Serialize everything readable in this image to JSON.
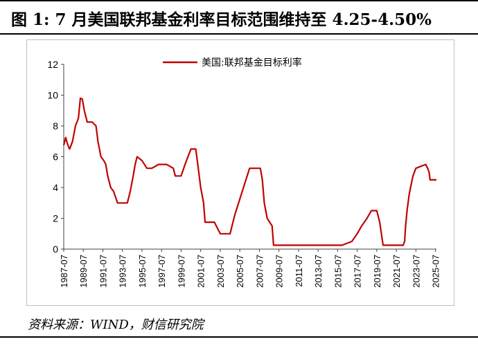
{
  "title": "图 1: 7 月美国联邦基金利率目标范围维持至 4.25-4.50%",
  "source": "资料来源：WIND，财信研究院",
  "colors": {
    "series": "#c00000",
    "axis": "#404040",
    "frame": "#bfbfbf"
  },
  "chart_data": {
    "type": "line",
    "title": "",
    "xlabel": "",
    "ylabel": "",
    "ylim": [
      0,
      12
    ],
    "y_ticks": [
      "0",
      "2",
      "4",
      "6",
      "8",
      "10",
      "12"
    ],
    "x_range": [
      1987.5,
      2025.6
    ],
    "x_ticks": [
      "1987-07",
      "1989-07",
      "1991-07",
      "1993-07",
      "1995-07",
      "1997-07",
      "1999-07",
      "2001-07",
      "2003-07",
      "2005-07",
      "2007-07",
      "2009-07",
      "2011-07",
      "2013-07",
      "2015-07",
      "2017-07",
      "2019-07",
      "2021-07",
      "2023-07",
      "2025-07"
    ],
    "grid": false,
    "legend_position": "top",
    "series": [
      {
        "name": "美国:联邦基金目标利率",
        "x": [
          1987.5,
          1987.7,
          1987.9,
          1988.1,
          1988.4,
          1988.7,
          1989.0,
          1989.2,
          1989.4,
          1989.6,
          1989.9,
          1990.4,
          1990.8,
          1991.0,
          1991.3,
          1991.6,
          1991.8,
          1992.0,
          1992.3,
          1992.6,
          1993.0,
          1994.0,
          1994.3,
          1994.6,
          1994.8,
          1995.0,
          1995.5,
          1996.0,
          1996.5,
          1997.2,
          1998.0,
          1998.7,
          1998.9,
          1999.5,
          1999.9,
          2000.2,
          2000.5,
          2001.0,
          2001.2,
          2001.5,
          2001.8,
          2001.95,
          2002.9,
          2003.5,
          2004.5,
          2005.0,
          2005.5,
          2006.0,
          2006.5,
          2007.6,
          2007.8,
          2008.0,
          2008.3,
          2008.8,
          2008.95,
          2015.95,
          2016.95,
          2017.5,
          2017.95,
          2018.5,
          2018.95,
          2019.5,
          2019.6,
          2019.8,
          2020.15,
          2020.2,
          2022.2,
          2022.35,
          2022.45,
          2022.6,
          2022.8,
          2022.95,
          2023.2,
          2023.5,
          2024.5,
          2024.7,
          2024.85,
          2024.95,
          2025.6
        ],
        "y": [
          6.75,
          7.25,
          6.8,
          6.5,
          7.0,
          8.0,
          8.5,
          9.8,
          9.75,
          9.0,
          8.25,
          8.25,
          8.0,
          7.0,
          6.0,
          5.75,
          5.5,
          4.75,
          4.0,
          3.75,
          3.0,
          3.0,
          3.75,
          4.75,
          5.5,
          6.0,
          5.75,
          5.25,
          5.25,
          5.5,
          5.5,
          5.25,
          4.75,
          4.75,
          5.5,
          6.0,
          6.5,
          6.5,
          5.5,
          4.0,
          3.0,
          1.75,
          1.75,
          1.0,
          1.0,
          2.25,
          3.25,
          4.25,
          5.25,
          5.25,
          4.5,
          3.0,
          2.0,
          1.5,
          0.25,
          0.25,
          0.5,
          1.0,
          1.5,
          2.0,
          2.5,
          2.5,
          2.25,
          1.75,
          0.25,
          0.25,
          0.25,
          0.5,
          1.5,
          2.5,
          3.5,
          4.0,
          4.75,
          5.25,
          5.5,
          5.25,
          5.0,
          4.5,
          4.5
        ]
      }
    ]
  }
}
